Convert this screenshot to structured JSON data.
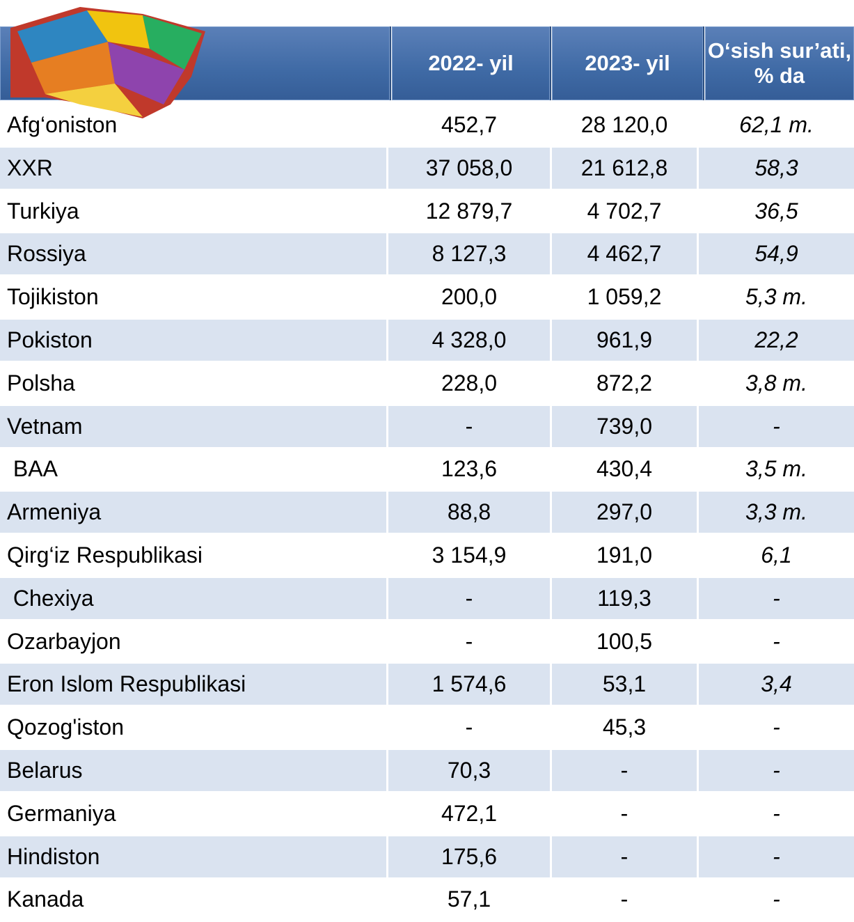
{
  "table": {
    "header": [
      "2022- yil",
      "2023- yil",
      "O‘sish sur’ati, % da"
    ],
    "rows": [
      [
        "Afg‘oniston",
        "452,7",
        "28 120,0",
        "62,1 m."
      ],
      [
        "XXR",
        "37 058,0",
        "21 612,8",
        "58,3"
      ],
      [
        "Turkiya",
        "12 879,7",
        "4 702,7",
        "36,5"
      ],
      [
        "Rossiya",
        "8 127,3",
        "4 462,7",
        "54,9"
      ],
      [
        "Tojikiston",
        "200,0",
        "1 059,2",
        "5,3 m."
      ],
      [
        "Pokiston",
        "4 328,0",
        "961,9",
        "22,2"
      ],
      [
        "Polsha",
        "228,0",
        "872,2",
        "3,8 m."
      ],
      [
        "Vetnam",
        "-",
        "739,0",
        "-"
      ],
      [
        " BAA",
        "123,6",
        "430,4",
        "3,5 m."
      ],
      [
        "Armeniya",
        "88,8",
        "297,0",
        "3,3 m."
      ],
      [
        "Qirg‘iz Respublikasi",
        "3 154,9",
        "191,0",
        "6,1"
      ],
      [
        " Chexiya",
        "-",
        "119,3",
        "-"
      ],
      [
        "Ozarbayjon",
        "-",
        "100,5",
        "-"
      ],
      [
        "Eron Islom Respublikasi",
        "1 574,6",
        "53,1",
        "3,4"
      ],
      [
        "Qozog'iston",
        "-",
        "45,3",
        "-"
      ],
      [
        "Belarus",
        "70,3",
        "-",
        "-"
      ],
      [
        "Germaniya",
        "472,1",
        "-",
        "-"
      ],
      [
        "Hindiston",
        "175,6",
        "-",
        "-"
      ],
      [
        "Kanada",
        "57,1",
        "-",
        "-"
      ]
    ]
  }
}
